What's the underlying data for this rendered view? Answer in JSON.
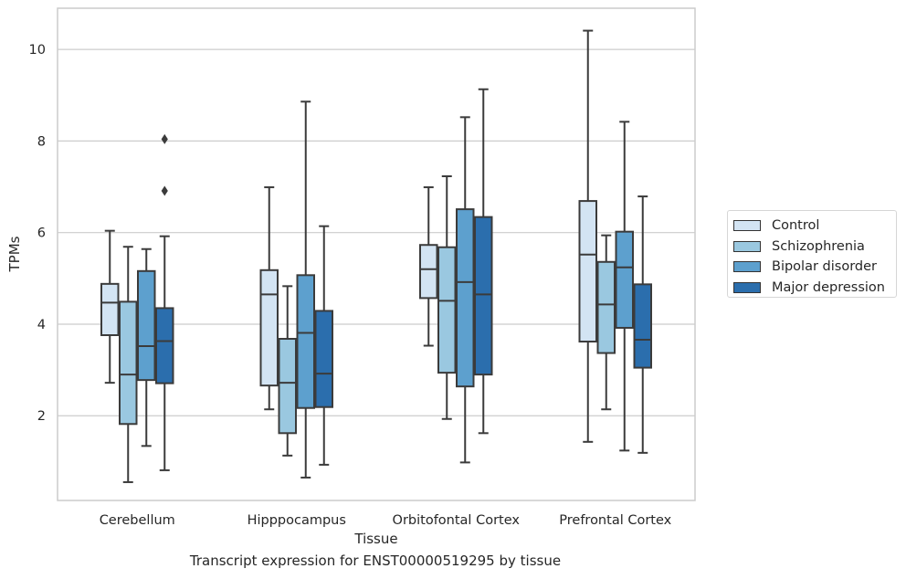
{
  "chart_data": {
    "type": "box",
    "title": "",
    "caption": "Transcript expression for ENST00000519295 by tissue",
    "xlabel": "Tissue",
    "ylabel": "TPMs",
    "ylim": [
      0.15,
      10.9
    ],
    "yticks": [
      2,
      4,
      6,
      8,
      10
    ],
    "grid": "horizontal",
    "legend_position": "right",
    "categories": [
      "Cerebellum",
      "Hipppocampus",
      "Orbitofontal Cortex",
      "Prefrontal Cortex"
    ],
    "series": [
      {
        "name": "Control",
        "color": "#d3e4f3",
        "boxes": [
          {
            "whisker_low": 2.72,
            "q1": 3.76,
            "median": 4.47,
            "q3": 4.88,
            "whisker_high": 6.04,
            "outliers": []
          },
          {
            "whisker_low": 2.14,
            "q1": 2.66,
            "median": 4.65,
            "q3": 5.18,
            "whisker_high": 6.99,
            "outliers": []
          },
          {
            "whisker_low": 3.53,
            "q1": 4.57,
            "median": 5.2,
            "q3": 5.73,
            "whisker_high": 6.99,
            "outliers": []
          },
          {
            "whisker_low": 1.43,
            "q1": 3.62,
            "median": 5.52,
            "q3": 6.69,
            "whisker_high": 10.41,
            "outliers": []
          }
        ]
      },
      {
        "name": "Schizophrenia",
        "color": "#9ac8e0",
        "boxes": [
          {
            "whisker_low": 0.55,
            "q1": 1.82,
            "median": 2.9,
            "q3": 4.49,
            "whisker_high": 5.69,
            "outliers": []
          },
          {
            "whisker_low": 1.13,
            "q1": 1.62,
            "median": 2.72,
            "q3": 3.68,
            "whisker_high": 4.83,
            "outliers": []
          },
          {
            "whisker_low": 1.93,
            "q1": 2.94,
            "median": 4.51,
            "q3": 5.68,
            "whisker_high": 7.23,
            "outliers": []
          },
          {
            "whisker_low": 2.14,
            "q1": 3.37,
            "median": 4.43,
            "q3": 5.36,
            "whisker_high": 5.94,
            "outliers": []
          }
        ]
      },
      {
        "name": "Bipolar disorder",
        "color": "#5da0ce",
        "boxes": [
          {
            "whisker_low": 1.34,
            "q1": 2.78,
            "median": 3.52,
            "q3": 5.16,
            "whisker_high": 5.64,
            "outliers": []
          },
          {
            "whisker_low": 0.65,
            "q1": 2.17,
            "median": 3.81,
            "q3": 5.07,
            "whisker_high": 8.86,
            "outliers": []
          },
          {
            "whisker_low": 0.98,
            "q1": 2.64,
            "median": 4.92,
            "q3": 6.51,
            "whisker_high": 8.52,
            "outliers": []
          },
          {
            "whisker_low": 1.24,
            "q1": 3.92,
            "median": 5.24,
            "q3": 6.02,
            "whisker_high": 8.42,
            "outliers": []
          }
        ]
      },
      {
        "name": "Major depression",
        "color": "#2b6ead",
        "boxes": [
          {
            "whisker_low": 0.81,
            "q1": 2.71,
            "median": 3.63,
            "q3": 4.35,
            "whisker_high": 5.92,
            "outliers": [
              6.91,
              8.04
            ]
          },
          {
            "whisker_low": 0.93,
            "q1": 2.19,
            "median": 2.92,
            "q3": 4.29,
            "whisker_high": 6.14,
            "outliers": []
          },
          {
            "whisker_low": 1.62,
            "q1": 2.9,
            "median": 4.65,
            "q3": 6.34,
            "whisker_high": 9.13,
            "outliers": []
          },
          {
            "whisker_low": 1.19,
            "q1": 3.05,
            "median": 3.66,
            "q3": 4.87,
            "whisker_high": 6.79,
            "outliers": []
          }
        ]
      }
    ]
  }
}
